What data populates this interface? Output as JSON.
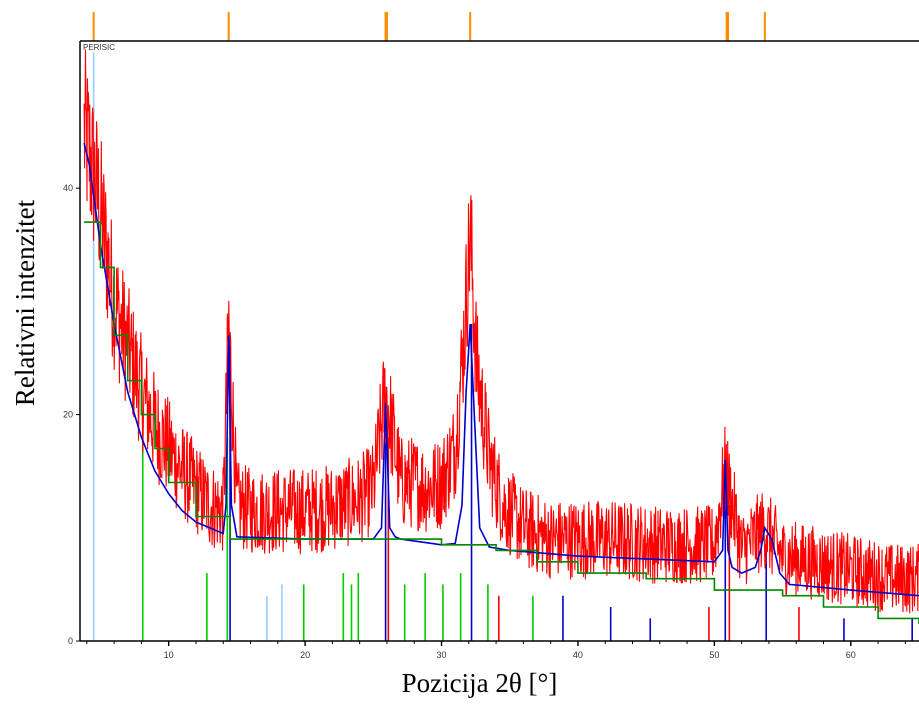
{
  "chart_data": {
    "type": "line",
    "title": "",
    "sample_label": "PERISIC",
    "xlabel": "Pozicija 2θ [°]",
    "ylabel": "Relativni intenzitet",
    "xlim": [
      3.5,
      65
    ],
    "ylim": [
      0,
      53
    ],
    "x_ticks": [
      10,
      20,
      30,
      40,
      50,
      60
    ],
    "y_ticks": [
      0,
      20,
      40
    ],
    "grid": false,
    "colors": {
      "observed": "#ff0000",
      "fit": "#0000cc",
      "background": "#008800",
      "reference_peaks_top": "#ff8c00",
      "bars_green": "#00cc00",
      "bars_red": "#ff0000",
      "bars_blue": "#0000cc",
      "bars_lightblue": "#99ccff"
    },
    "series": [
      {
        "name": "",
        "role": "observed",
        "x": [
          3.8,
          4.2,
          5,
          6,
          7,
          8,
          9,
          10,
          11,
          12,
          13,
          14,
          14.4,
          15,
          16,
          18,
          20,
          22,
          24,
          25,
          25.9,
          27,
          28,
          29,
          30,
          31,
          31.6,
          32.1,
          32.6,
          33.5,
          34.5,
          36,
          38,
          40,
          42,
          44,
          46,
          48,
          50,
          50.8,
          52,
          53.7,
          55,
          57,
          59,
          61,
          63,
          65
        ],
        "y": [
          45,
          43,
          38,
          30,
          26,
          22,
          19,
          17,
          15,
          13.5,
          12,
          11.5,
          28,
          12,
          11.5,
          11.5,
          11.5,
          11.8,
          12.5,
          13.5,
          22,
          14,
          14,
          13.5,
          14,
          17,
          26,
          36,
          24,
          16,
          12,
          10,
          9,
          9,
          9,
          8.8,
          8.5,
          8.5,
          8.5,
          15,
          8,
          10,
          7.5,
          7,
          6.5,
          6,
          5.5,
          5.5
        ]
      },
      {
        "name": "",
        "role": "fit",
        "x": [
          3.8,
          4.2,
          5,
          6,
          7,
          8,
          9,
          10,
          11,
          12,
          13,
          14,
          14.2,
          14.4,
          14.6,
          15,
          20,
          25,
          25.6,
          25.9,
          26.2,
          26.6,
          27,
          30,
          31,
          31.5,
          31.8,
          32.1,
          32.4,
          32.8,
          33.5,
          35,
          40,
          50,
          50.6,
          50.8,
          51.0,
          51.3,
          52,
          53,
          53.4,
          53.7,
          54.2,
          54.8,
          55.5,
          60,
          65
        ],
        "y": [
          44,
          42,
          35,
          28,
          22,
          18,
          15,
          13,
          11.5,
          10.5,
          10,
          9.5,
          12,
          27,
          12,
          9.2,
          9,
          9,
          10,
          21,
          10,
          9.2,
          9,
          8.5,
          8.6,
          12,
          22,
          28,
          20,
          10,
          8.3,
          8,
          7.5,
          7,
          8,
          16,
          8,
          6.5,
          6,
          6.5,
          8,
          10,
          9,
          6,
          5,
          4.5,
          4
        ]
      },
      {
        "name": "",
        "role": "background",
        "x": [
          3.8,
          5,
          6,
          7,
          8,
          9,
          10,
          12,
          14.5,
          20,
          30,
          34,
          37,
          40,
          45,
          50,
          55,
          58,
          62,
          65
        ],
        "y": [
          37,
          33,
          27,
          23,
          20,
          17,
          14,
          11,
          9,
          9,
          8.5,
          8,
          7,
          6,
          5.5,
          4.5,
          4,
          3,
          2,
          1.5
        ]
      }
    ],
    "reference_peaks_top": [
      4.5,
      14.4,
      25.9,
      26.0,
      32.1,
      50.9,
      51.0,
      53.7
    ],
    "reference_bars": [
      {
        "x": 4.5,
        "h": 52,
        "color": "lightblue"
      },
      {
        "x": 8.1,
        "h": 20,
        "color": "green"
      },
      {
        "x": 12.8,
        "h": 6,
        "color": "green"
      },
      {
        "x": 14.3,
        "h": 18,
        "color": "green"
      },
      {
        "x": 14.5,
        "h": 27,
        "color": "blue"
      },
      {
        "x": 17.2,
        "h": 4,
        "color": "lightblue"
      },
      {
        "x": 18.3,
        "h": 5,
        "color": "lightblue"
      },
      {
        "x": 19.9,
        "h": 5,
        "color": "green"
      },
      {
        "x": 22.8,
        "h": 6,
        "color": "green"
      },
      {
        "x": 23.4,
        "h": 5,
        "color": "green"
      },
      {
        "x": 23.9,
        "h": 6,
        "color": "green"
      },
      {
        "x": 25.9,
        "h": 20,
        "color": "blue"
      },
      {
        "x": 26.1,
        "h": 18,
        "color": "red"
      },
      {
        "x": 27.3,
        "h": 5,
        "color": "green"
      },
      {
        "x": 28.8,
        "h": 6,
        "color": "green"
      },
      {
        "x": 30.1,
        "h": 5,
        "color": "green"
      },
      {
        "x": 31.4,
        "h": 6,
        "color": "green"
      },
      {
        "x": 32.2,
        "h": 28,
        "color": "blue"
      },
      {
        "x": 33.4,
        "h": 5,
        "color": "green"
      },
      {
        "x": 34.2,
        "h": 4,
        "color": "red"
      },
      {
        "x": 36.7,
        "h": 4,
        "color": "green"
      },
      {
        "x": 38.9,
        "h": 4,
        "color": "blue"
      },
      {
        "x": 42.4,
        "h": 3,
        "color": "blue"
      },
      {
        "x": 45.3,
        "h": 2,
        "color": "blue"
      },
      {
        "x": 49.6,
        "h": 3,
        "color": "red"
      },
      {
        "x": 50.8,
        "h": 16,
        "color": "blue"
      },
      {
        "x": 51.1,
        "h": 12,
        "color": "red"
      },
      {
        "x": 53.8,
        "h": 9,
        "color": "blue"
      },
      {
        "x": 56.2,
        "h": 3,
        "color": "red"
      },
      {
        "x": 59.5,
        "h": 2,
        "color": "blue"
      },
      {
        "x": 64.5,
        "h": 2,
        "color": "blue"
      }
    ]
  }
}
